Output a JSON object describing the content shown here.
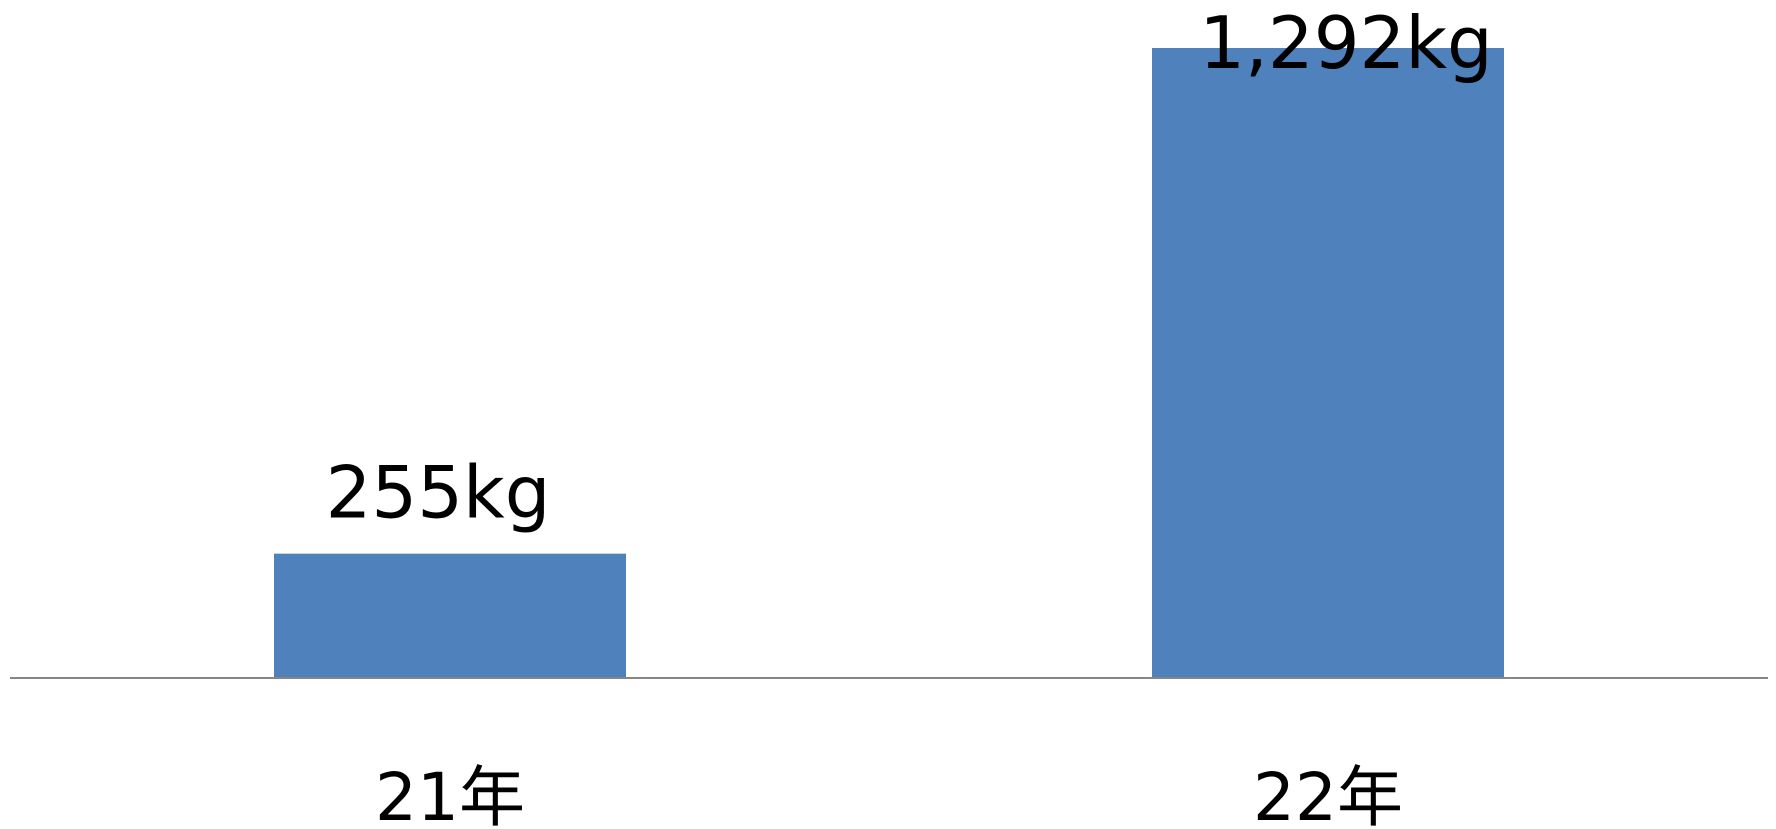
{
  "chart_data": {
    "type": "bar",
    "title": "",
    "xlabel": "",
    "ylabel": "",
    "categories": [
      "21年",
      "22年"
    ],
    "values": [
      255,
      1292
    ],
    "data_labels": [
      "255kg",
      "1,292kg"
    ],
    "ylim": [
      0,
      1292
    ],
    "grid": false,
    "legend": "none",
    "bar_color": "#4f81bd",
    "axis_color": "#868686"
  }
}
